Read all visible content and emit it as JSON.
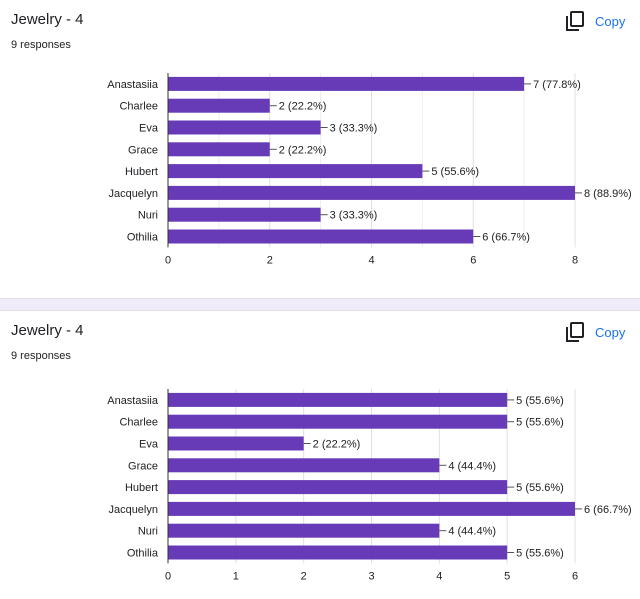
{
  "copy_icon": "copy-icon",
  "colors": {
    "bar": "#673ab7",
    "grid": "#e0e0e0",
    "axis": "#333333",
    "text": "#202124",
    "link": "#1a73e8"
  },
  "cards": [
    {
      "title": "Jewelry - 4",
      "responses": "9 responses",
      "copy_label": "Copy"
    },
    {
      "title": "Jewelry - 4",
      "responses": "9 responses",
      "copy_label": "Copy"
    }
  ],
  "chart_data": [
    {
      "type": "bar",
      "orientation": "horizontal",
      "categories": [
        "Anastasiia",
        "Charlee",
        "Eva",
        "Grace",
        "Hubert",
        "Jacquelyn",
        "Nuri",
        "Othilia"
      ],
      "values": [
        7,
        2,
        3,
        2,
        5,
        8,
        3,
        6
      ],
      "labels": [
        "7 (77.8%)",
        "2 (22.2%)",
        "3 (33.3%)",
        "2 (22.2%)",
        "5 (55.6%)",
        "8 (88.9%)",
        "3 (33.3%)",
        "6 (66.7%)"
      ],
      "xlim": [
        0,
        8
      ],
      "xticks": [
        0,
        2,
        4,
        6,
        8
      ],
      "minor_xticks": [
        1,
        3,
        5,
        7
      ],
      "grid": true,
      "title": "",
      "xlabel": "",
      "ylabel": ""
    },
    {
      "type": "bar",
      "orientation": "horizontal",
      "categories": [
        "Anastasiia",
        "Charlee",
        "Eva",
        "Grace",
        "Hubert",
        "Jacquelyn",
        "Nuri",
        "Othilia"
      ],
      "values": [
        5,
        5,
        2,
        4,
        5,
        6,
        4,
        5
      ],
      "labels": [
        "5 (55.6%)",
        "5 (55.6%)",
        "2 (22.2%)",
        "4 (44.4%)",
        "5 (55.6%)",
        "6 (66.7%)",
        "4 (44.4%)",
        "5 (55.6%)"
      ],
      "xlim": [
        0,
        6
      ],
      "xticks": [
        0,
        1,
        2,
        3,
        4,
        5,
        6
      ],
      "minor_xticks": [],
      "grid": true,
      "title": "",
      "xlabel": "",
      "ylabel": ""
    }
  ]
}
